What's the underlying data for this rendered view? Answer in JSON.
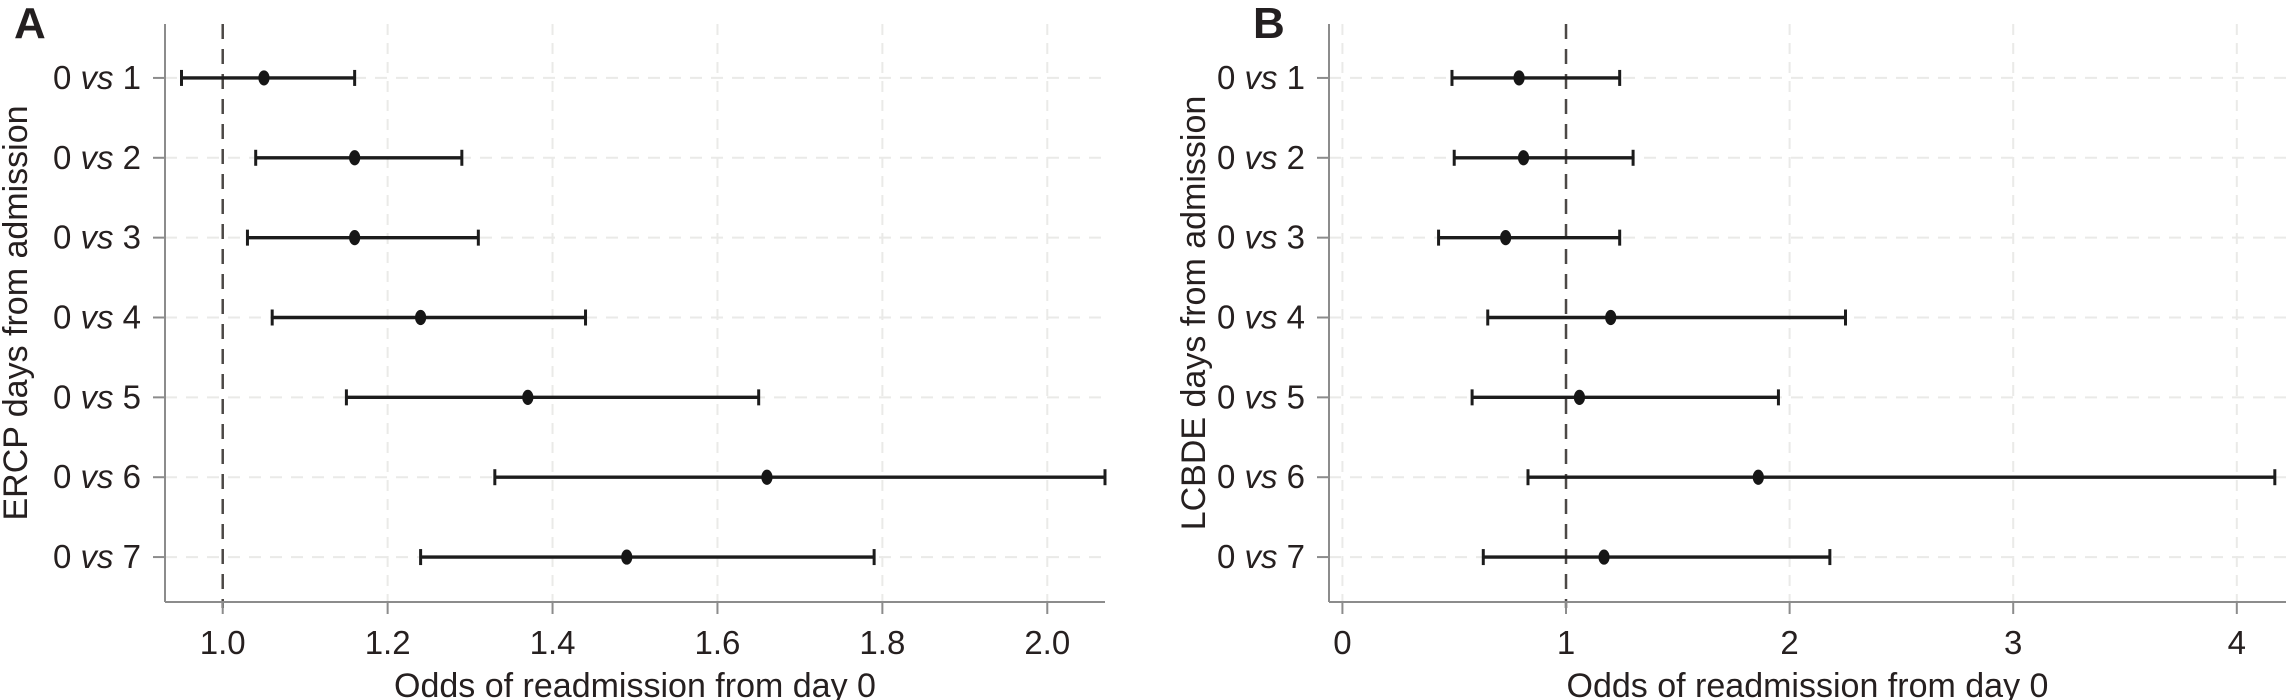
{
  "figure": {
    "background": "#ffffff"
  },
  "colors": {
    "text": "#262020",
    "axis": "#8c8c8c",
    "marker": "#161616",
    "errorbar": "#1c1c1c",
    "grid": "#eaeae8",
    "refline": "#4c4846"
  },
  "chart_data": [
    {
      "panel_label": "A",
      "type": "scatter",
      "subtype": "horizontal-forest-plot",
      "xlabel": "Odds of readmission from day 0",
      "ylabel": "ERCP days from admission",
      "categories": [
        "0 vs 1",
        "0 vs 2",
        "0 vs 3",
        "0 vs 4",
        "0 vs 5",
        "0 vs 6",
        "0 vs 7"
      ],
      "series": [
        {
          "name": "odds ratio with 95% CI",
          "or": [
            1.05,
            1.16,
            1.16,
            1.24,
            1.37,
            1.66,
            1.49
          ],
          "ci_low": [
            0.95,
            1.04,
            1.03,
            1.06,
            1.15,
            1.33,
            1.24
          ],
          "ci_high": [
            1.16,
            1.29,
            1.31,
            1.44,
            1.65,
            2.07,
            1.79
          ]
        }
      ],
      "refline_x": 1.0,
      "xlim": [
        0.93,
        2.07
      ],
      "xticks": [
        1.0,
        1.2,
        1.4,
        1.6,
        1.8,
        2.0
      ],
      "xtick_labels": [
        "1.0",
        "1.2",
        "1.4",
        "1.6",
        "1.8",
        "2.0"
      ],
      "grid": "light dashed horizontal and vertical",
      "legend": "none"
    },
    {
      "panel_label": "B",
      "type": "scatter",
      "subtype": "horizontal-forest-plot",
      "xlabel": "Odds of readmission from day 0",
      "ylabel": "LCBDE days from admission",
      "categories": [
        "0 vs 1",
        "0 vs 2",
        "0 vs 3",
        "0 vs 4",
        "0 vs 5",
        "0 vs 6",
        "0 vs 7"
      ],
      "series": [
        {
          "name": "odds ratio with 95% CI",
          "or": [
            0.79,
            0.81,
            0.73,
            1.2,
            1.06,
            1.86,
            1.17
          ],
          "ci_low": [
            0.49,
            0.5,
            0.43,
            0.65,
            0.58,
            0.83,
            0.63
          ],
          "ci_high": [
            1.24,
            1.3,
            1.24,
            2.25,
            1.95,
            4.17,
            2.18
          ]
        }
      ],
      "refline_x": 1.0,
      "xlim": [
        -0.06,
        4.22
      ],
      "xticks": [
        0,
        1,
        2,
        3,
        4
      ],
      "xtick_labels": [
        "0",
        "1",
        "2",
        "3",
        "4"
      ],
      "grid": "light dashed horizontal and vertical",
      "legend": "none"
    }
  ]
}
